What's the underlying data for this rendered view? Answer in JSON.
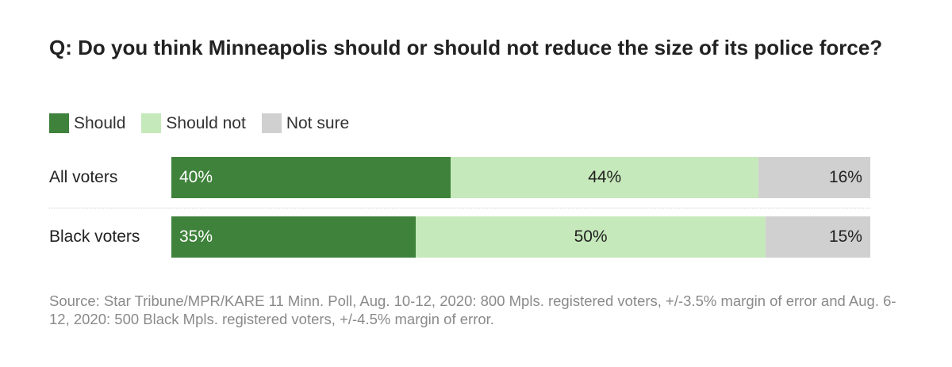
{
  "chart_data": {
    "type": "bar",
    "orientation": "horizontal",
    "stacked": true,
    "title": "Q: Do you think Minneapolis should or should not reduce the size of its police force?",
    "categories": [
      "All voters",
      "Black voters"
    ],
    "series": [
      {
        "name": "Should",
        "values": [
          40,
          35
        ],
        "labels": [
          "40%",
          "35%"
        ],
        "color": "#3f823b"
      },
      {
        "name": "Should not",
        "values": [
          44,
          50
        ],
        "labels": [
          "44%",
          "50%"
        ],
        "color": "#c6e9bb"
      },
      {
        "name": "Not sure",
        "values": [
          16,
          15
        ],
        "labels": [
          "16%",
          "15%"
        ],
        "color": "#d0d0d0"
      }
    ],
    "xlim": [
      0,
      100
    ],
    "unit": "%",
    "legend_position": "top-left",
    "source": "Source: Star Tribune/MPR/KARE 11 Minn. Poll, Aug. 10-12, 2020: 800 Mpls. registered voters, +/-3.5% margin of error and Aug. 6-12, 2020: 500 Black Mpls. registered voters, +/-4.5% margin of error."
  }
}
